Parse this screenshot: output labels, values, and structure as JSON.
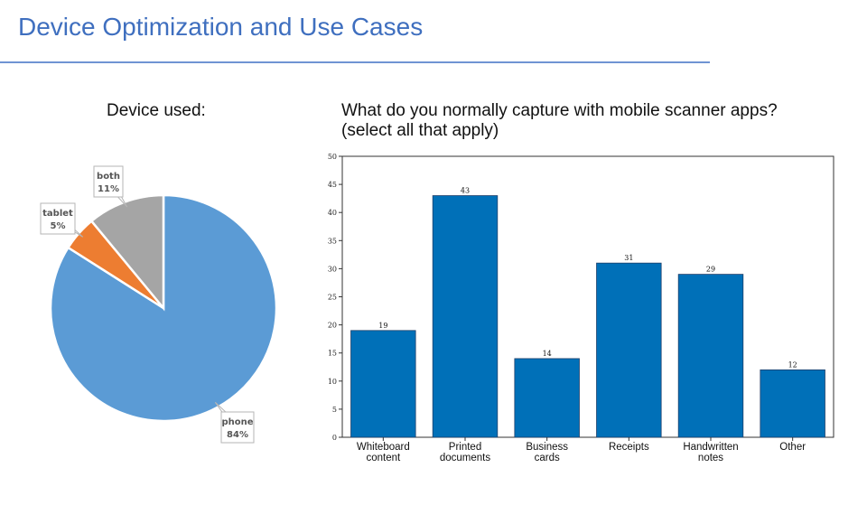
{
  "page": {
    "title": "Device Optimization and Use Cases",
    "accent_color": "#3f6fbf",
    "rule_color": "#6f94d3"
  },
  "chart_data": [
    {
      "type": "pie",
      "title": "Device used:",
      "slices": [
        {
          "label": "phone",
          "value": 84,
          "display": "84%",
          "color": "#5b9bd5"
        },
        {
          "label": "tablet",
          "value": 5,
          "display": "5%",
          "color": "#ed7d31"
        },
        {
          "label": "both",
          "value": 11,
          "display": "11%",
          "color": "#a5a5a5"
        }
      ]
    },
    {
      "type": "bar",
      "title_lines": [
        "What do you normally capture with mobile scanner apps?",
        "(select all that apply)"
      ],
      "categories": [
        [
          "Whiteboard",
          "content"
        ],
        [
          "Printed",
          "documents"
        ],
        [
          "Business",
          "cards"
        ],
        [
          "Receipts"
        ],
        [
          "Handwritten",
          "notes"
        ],
        [
          "Other"
        ]
      ],
      "values": [
        19,
        43,
        14,
        31,
        29,
        12
      ],
      "ylim": [
        0,
        50
      ],
      "yticks": [
        0,
        5,
        10,
        15,
        20,
        25,
        30,
        35,
        40,
        45,
        50
      ],
      "bar_color": "#0070b8",
      "grid": false
    }
  ]
}
